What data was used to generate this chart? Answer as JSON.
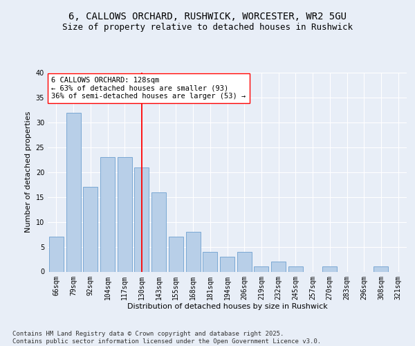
{
  "title_line1": "6, CALLOWS ORCHARD, RUSHWICK, WORCESTER, WR2 5GU",
  "title_line2": "Size of property relative to detached houses in Rushwick",
  "xlabel": "Distribution of detached houses by size in Rushwick",
  "ylabel": "Number of detached properties",
  "categories": [
    "66sqm",
    "79sqm",
    "92sqm",
    "104sqm",
    "117sqm",
    "130sqm",
    "143sqm",
    "155sqm",
    "168sqm",
    "181sqm",
    "194sqm",
    "206sqm",
    "219sqm",
    "232sqm",
    "245sqm",
    "257sqm",
    "270sqm",
    "283sqm",
    "296sqm",
    "308sqm",
    "321sqm"
  ],
  "values": [
    7,
    32,
    17,
    23,
    23,
    21,
    16,
    7,
    8,
    4,
    3,
    4,
    1,
    2,
    1,
    0,
    1,
    0,
    0,
    1,
    0
  ],
  "bar_color": "#b8cfe8",
  "bar_edge_color": "#7aa8d4",
  "reference_bin_index": 5,
  "annotation_text": "6 CALLOWS ORCHARD: 128sqm\n← 63% of detached houses are smaller (93)\n36% of semi-detached houses are larger (53) →",
  "ylim": [
    0,
    40
  ],
  "yticks": [
    0,
    5,
    10,
    15,
    20,
    25,
    30,
    35,
    40
  ],
  "background_color": "#e8eef7",
  "plot_bg_color": "#e8eef7",
  "footer_text": "Contains HM Land Registry data © Crown copyright and database right 2025.\nContains public sector information licensed under the Open Government Licence v3.0.",
  "title_fontsize": 10,
  "subtitle_fontsize": 9,
  "axis_label_fontsize": 8,
  "tick_fontsize": 7,
  "annotation_fontsize": 7.5,
  "footer_fontsize": 6.5
}
